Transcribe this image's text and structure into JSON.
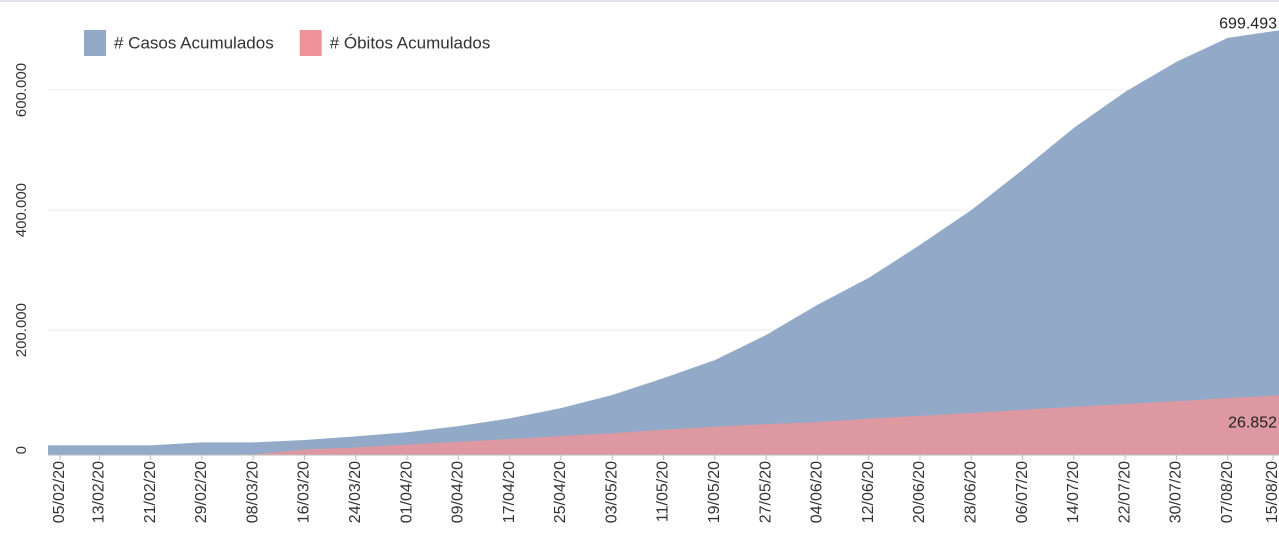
{
  "chart_data": {
    "type": "area",
    "categories": [
      "05/02/20",
      "13/02/20",
      "21/02/20",
      "29/02/20",
      "08/03/20",
      "16/03/20",
      "24/03/20",
      "01/04/20",
      "09/04/20",
      "17/04/20",
      "25/04/20",
      "03/05/20",
      "11/05/20",
      "19/05/20",
      "27/05/20",
      "04/06/20",
      "12/06/20",
      "20/06/20",
      "28/06/20",
      "06/07/20",
      "14/07/20",
      "22/07/20",
      "30/07/20",
      "07/08/20",
      "15/08/20"
    ],
    "series": [
      {
        "name": "# Casos Acumulados",
        "color": "#92aac8",
        "values": [
          8000,
          8000,
          8000,
          13000,
          13000,
          17000,
          23000,
          30000,
          40000,
          53000,
          70000,
          92000,
          120000,
          150000,
          192000,
          242000,
          287000,
          342000,
          400000,
          467000,
          537000,
          597000,
          647000,
          687000,
          699493
        ],
        "value_labels": [
          null,
          null,
          null,
          null,
          null,
          null,
          null,
          null,
          null,
          null,
          null,
          null,
          null,
          null,
          null,
          null,
          null,
          null,
          null,
          null,
          null,
          null,
          null,
          null,
          "699.493"
        ]
      },
      {
        "name": "# Óbitos Acumulados",
        "color": "#ee9499",
        "axis": "y2",
        "values": [
          0,
          0,
          0,
          0,
          300,
          2500,
          3400,
          4700,
          5900,
          7200,
          8500,
          9800,
          11400,
          12700,
          13900,
          14800,
          16400,
          17600,
          18900,
          20400,
          21700,
          23000,
          24200,
          25600,
          26852
        ],
        "value_labels": [
          null,
          null,
          null,
          null,
          null,
          null,
          null,
          null,
          null,
          null,
          null,
          null,
          null,
          null,
          null,
          null,
          null,
          null,
          null,
          null,
          null,
          null,
          null,
          null,
          "26.852"
        ]
      }
    ],
    "ylim": [
      -8000,
      750000
    ],
    "yticks": [
      0,
      {
        "value": 200000,
        "label": "200.000"
      },
      {
        "value": 400000,
        "label": "400.000"
      },
      {
        "value": 600000,
        "label": "600.000"
      }
    ],
    "y2lim": [
      0,
      205000
    ],
    "grid": true,
    "legend": "top-left"
  }
}
